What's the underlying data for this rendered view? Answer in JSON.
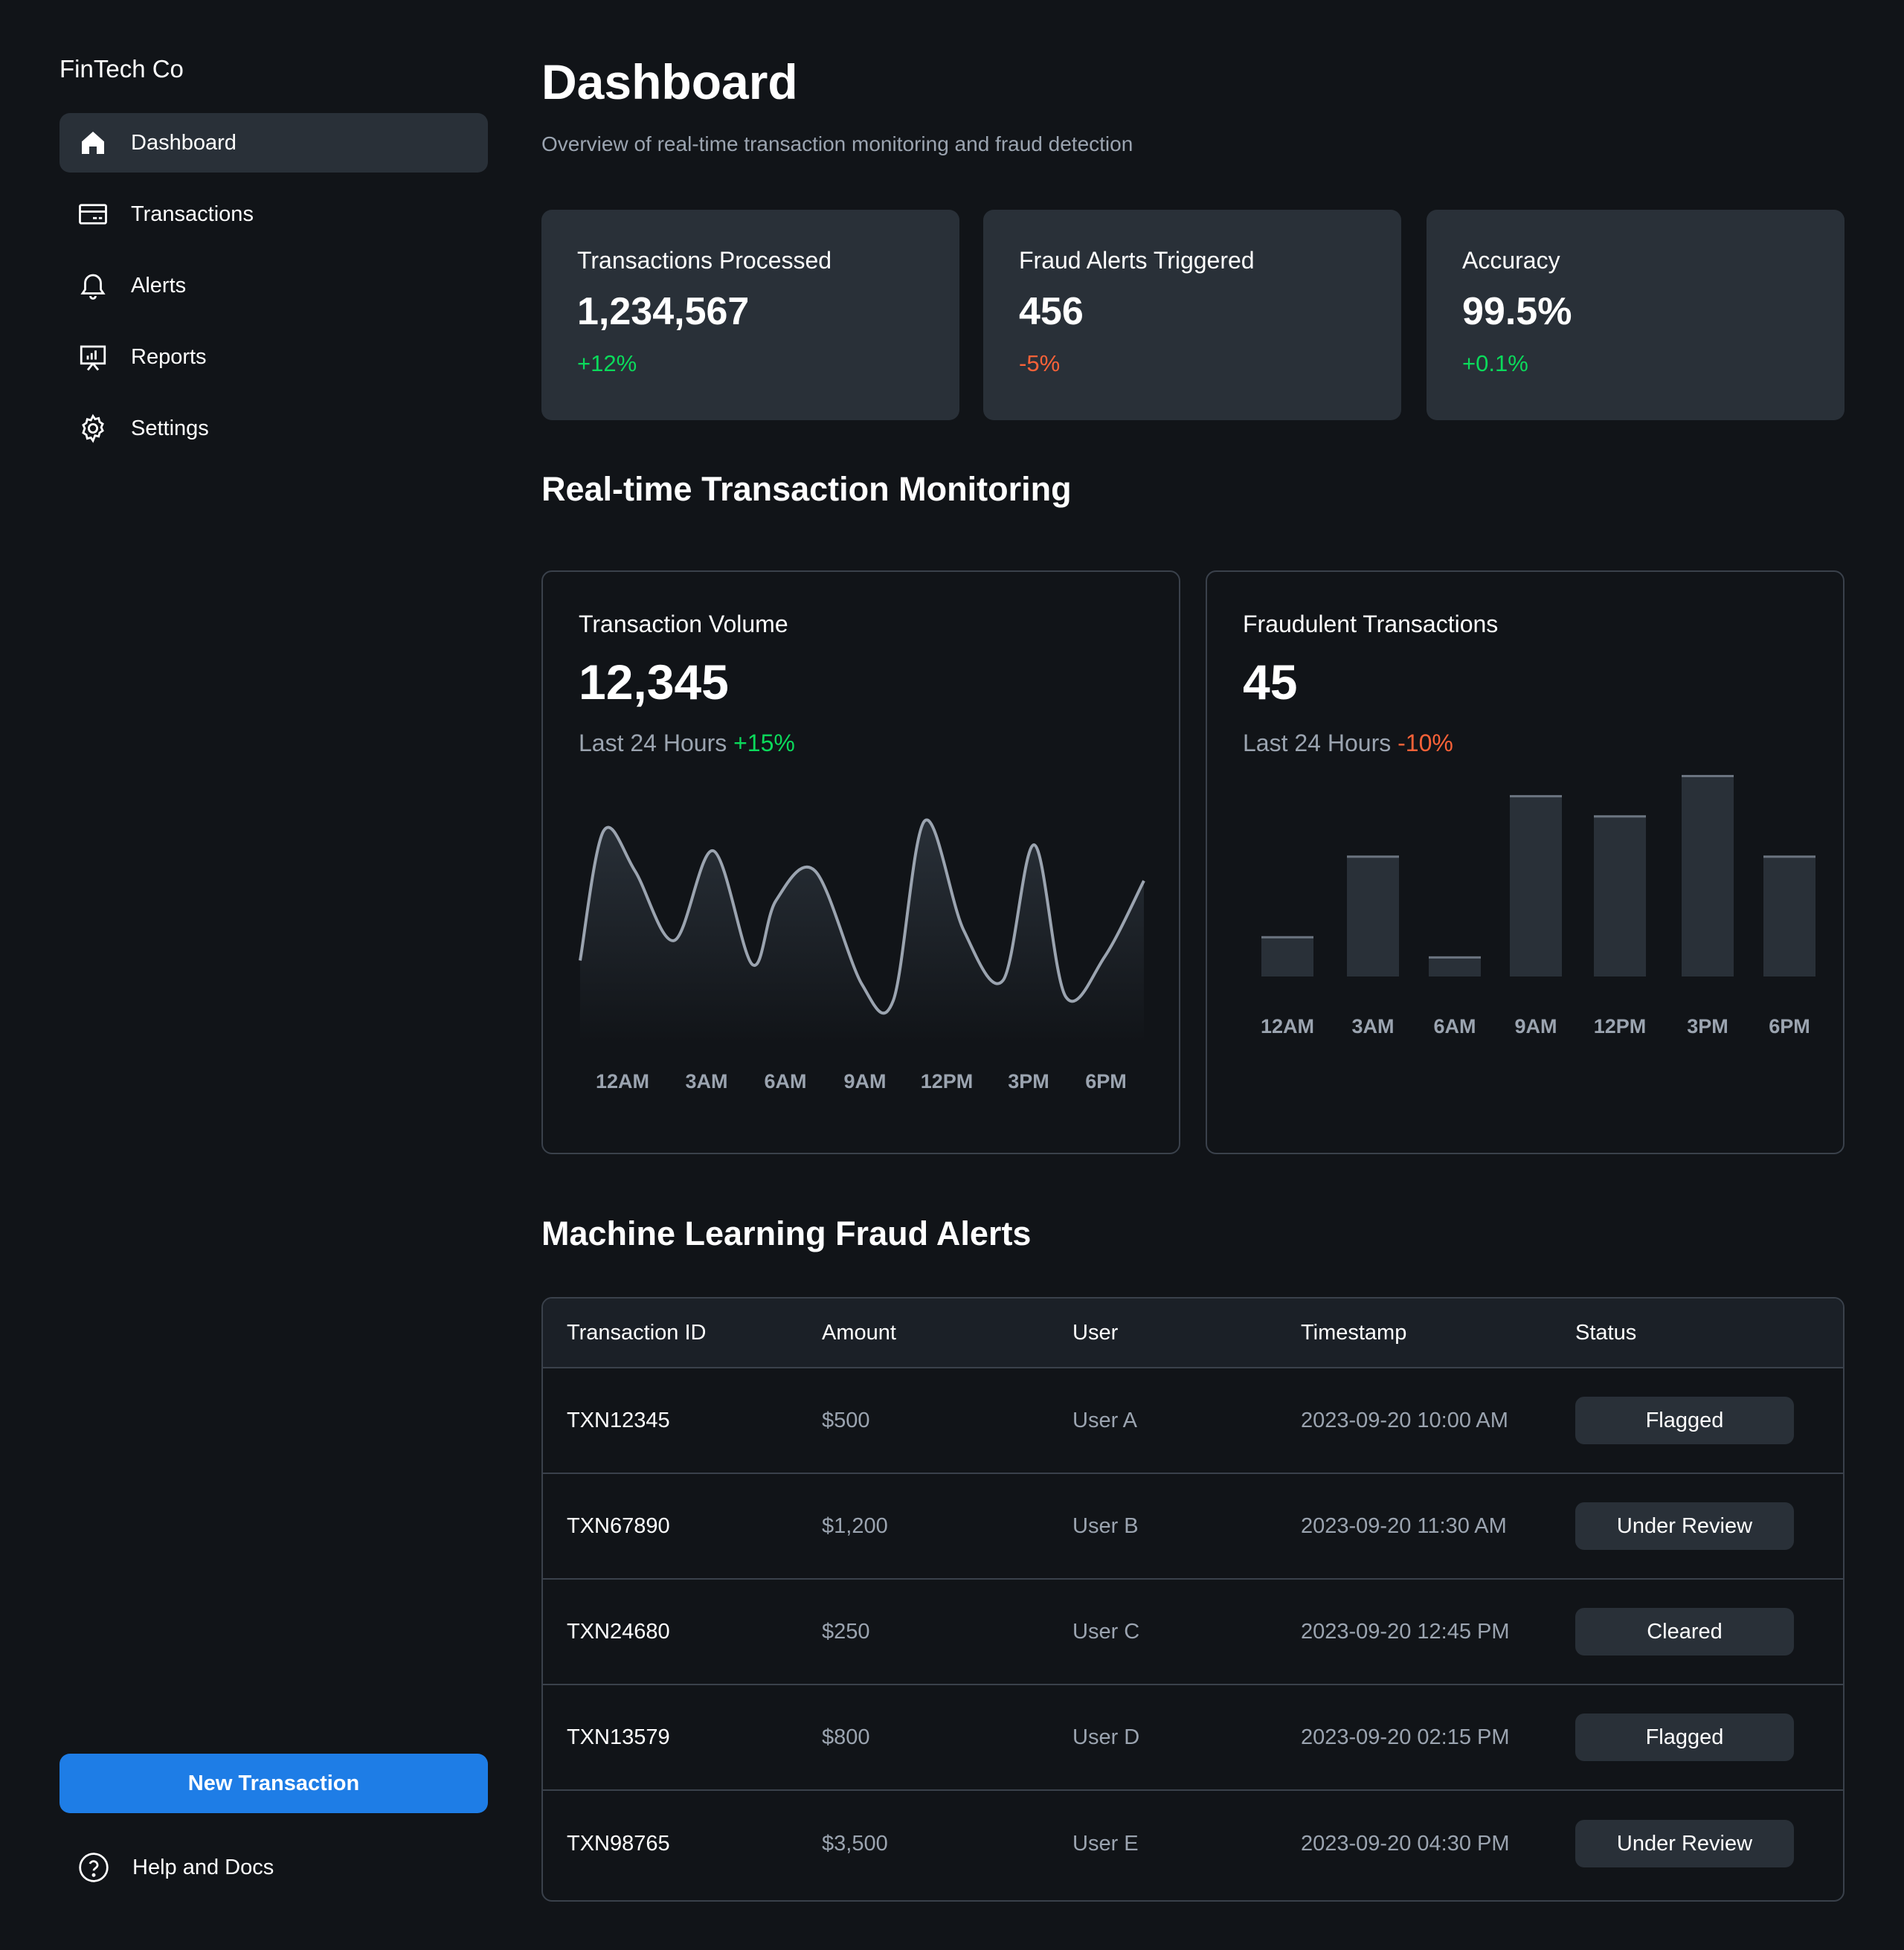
{
  "sidebar": {
    "brand": "FinTech Co",
    "items": [
      {
        "label": "Dashboard",
        "icon": "home-icon",
        "active": true
      },
      {
        "label": "Transactions",
        "icon": "credit-card-icon"
      },
      {
        "label": "Alerts",
        "icon": "bell-icon"
      },
      {
        "label": "Reports",
        "icon": "presentation-chart-icon"
      },
      {
        "label": "Settings",
        "icon": "gear-icon"
      }
    ],
    "new_button": "New Transaction",
    "help": "Help and Docs"
  },
  "header": {
    "title": "Dashboard",
    "subtitle": "Overview of real-time transaction monitoring and fraud detection"
  },
  "stats": [
    {
      "label": "Transactions Processed",
      "value": "1,234,567",
      "change": "+12%",
      "color": "#0bda5b"
    },
    {
      "label": "Fraud Alerts Triggered",
      "value": "456",
      "change": "-5%",
      "color": "#fa6238"
    },
    {
      "label": "Accuracy",
      "value": "99.5%",
      "change": "+0.1%",
      "color": "#0bda5b"
    }
  ],
  "monitoring": {
    "title": "Real-time Transaction Monitoring",
    "volume": {
      "label": "Transaction Volume",
      "value": "12,345",
      "period": "Last 24 Hours",
      "change": "+15%",
      "change_color": "#0bda5b"
    },
    "fraud": {
      "label": "Fraudulent Transactions",
      "value": "45",
      "period": "Last 24 Hours",
      "change": "-10%",
      "change_color": "#fa6238"
    }
  },
  "chart_data": [
    {
      "type": "line",
      "title": "Transaction Volume",
      "categories": [
        "12AM",
        "3AM",
        "6AM",
        "9AM",
        "12PM",
        "3PM",
        "6PM"
      ],
      "x": [
        0,
        0.3,
        0.7,
        1.2,
        1.7,
        2.2,
        2.5,
        3.0,
        3.6,
        4.0,
        4.4,
        4.9,
        5.4,
        5.8,
        6.2,
        6.7,
        7.2
      ],
      "values": [
        30,
        95,
        75,
        40,
        85,
        28,
        60,
        75,
        18,
        10,
        100,
        45,
        20,
        88,
        12,
        32,
        70
      ],
      "ylim": [
        0,
        110
      ]
    },
    {
      "type": "bar",
      "title": "Fraudulent Transactions",
      "categories": [
        "12AM",
        "3AM",
        "6AM",
        "9AM",
        "12PM",
        "3PM",
        "6PM"
      ],
      "values": [
        20,
        60,
        10,
        90,
        80,
        100,
        60
      ],
      "ylim": [
        0,
        100
      ]
    }
  ],
  "alerts": {
    "title": "Machine Learning Fraud Alerts",
    "columns": [
      "Transaction ID",
      "Amount",
      "User",
      "Timestamp",
      "Status"
    ],
    "rows": [
      {
        "id": "TXN12345",
        "amount": "$500",
        "user": "User A",
        "timestamp": "2023-09-20 10:00 AM",
        "status": "Flagged"
      },
      {
        "id": "TXN67890",
        "amount": "$1,200",
        "user": "User B",
        "timestamp": "2023-09-20 11:30 AM",
        "status": "Under Review"
      },
      {
        "id": "TXN24680",
        "amount": "$250",
        "user": "User C",
        "timestamp": "2023-09-20 12:45 PM",
        "status": "Cleared"
      },
      {
        "id": "TXN13579",
        "amount": "$800",
        "user": "User D",
        "timestamp": "2023-09-20 02:15 PM",
        "status": "Flagged"
      },
      {
        "id": "TXN98765",
        "amount": "$3,500",
        "user": "User E",
        "timestamp": "2023-09-20 04:30 PM",
        "status": "Under Review"
      }
    ]
  }
}
